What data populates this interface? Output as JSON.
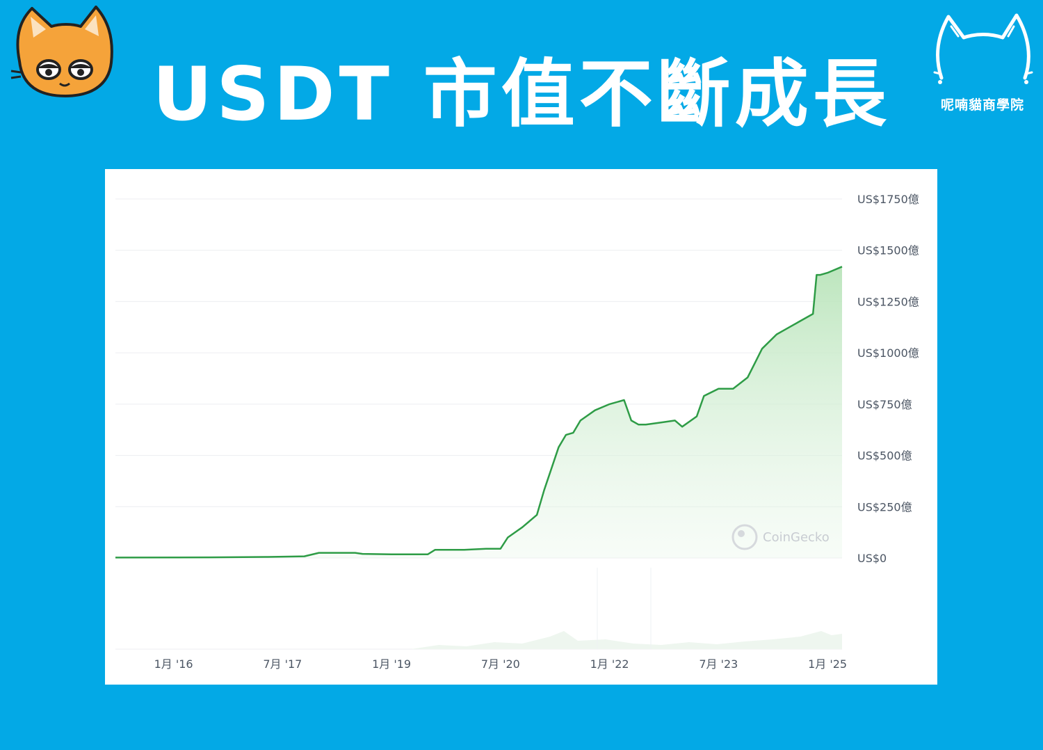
{
  "header": {
    "title": "USDT 市值不斷成長",
    "brand_name": "呢喃貓商學院"
  },
  "colors": {
    "background": "#03a9e6",
    "line": "#2e9c46",
    "area": "#c8ebc9"
  },
  "icons": {
    "left_logo": "orange-cat-face-icon",
    "right_logo": "white-cat-outline-icon"
  },
  "chart_data": {
    "type": "area",
    "watermark": "CoinGecko",
    "y_axis": {
      "ticks": [
        0,
        250,
        500,
        750,
        1000,
        1250,
        1500,
        1750
      ],
      "tick_labels": [
        "US$0",
        "US$250億",
        "US$500億",
        "US$750億",
        "US$1000億",
        "US$1250億",
        "US$1500億",
        "US$1750億"
      ],
      "ylim": [
        0,
        1750
      ],
      "unit": "億 USD"
    },
    "x_axis": {
      "tick_labels": [
        "1月 '16",
        "7月 '17",
        "1月 '19",
        "7月 '20",
        "1月 '22",
        "7月 '23",
        "1月 '25"
      ],
      "tick_values": [
        2016.0,
        2017.5,
        2019.0,
        2020.5,
        2022.0,
        2023.5,
        2025.0
      ],
      "xlim": [
        2015.2,
        2025.2
      ]
    },
    "grid": true,
    "series": [
      {
        "x": [
          2015.2,
          2016.5,
          2017.3,
          2017.8,
          2018.0,
          2018.5,
          2018.6,
          2019.0,
          2019.5,
          2019.6,
          2020.0,
          2020.3,
          2020.5,
          2020.6,
          2020.8,
          2021.0,
          2021.1,
          2021.3,
          2021.4,
          2021.5,
          2021.6,
          2021.8,
          2022.0,
          2022.2,
          2022.3,
          2022.4,
          2022.5,
          2022.7,
          2022.9,
          2023.0,
          2023.2,
          2023.3,
          2023.5,
          2023.7,
          2023.9,
          2024.0,
          2024.1,
          2024.3,
          2024.4,
          2024.6,
          2024.8,
          2024.85,
          2024.9,
          2025.0,
          2025.2
        ],
        "values": [
          2,
          3,
          5,
          8,
          25,
          25,
          20,
          18,
          18,
          40,
          40,
          45,
          45,
          100,
          150,
          210,
          330,
          540,
          600,
          610,
          670,
          720,
          750,
          770,
          670,
          650,
          650,
          660,
          670,
          640,
          690,
          790,
          825,
          825,
          880,
          950,
          1020,
          1090,
          1110,
          1150,
          1190,
          1380,
          1380,
          1390,
          1420
        ]
      }
    ]
  }
}
